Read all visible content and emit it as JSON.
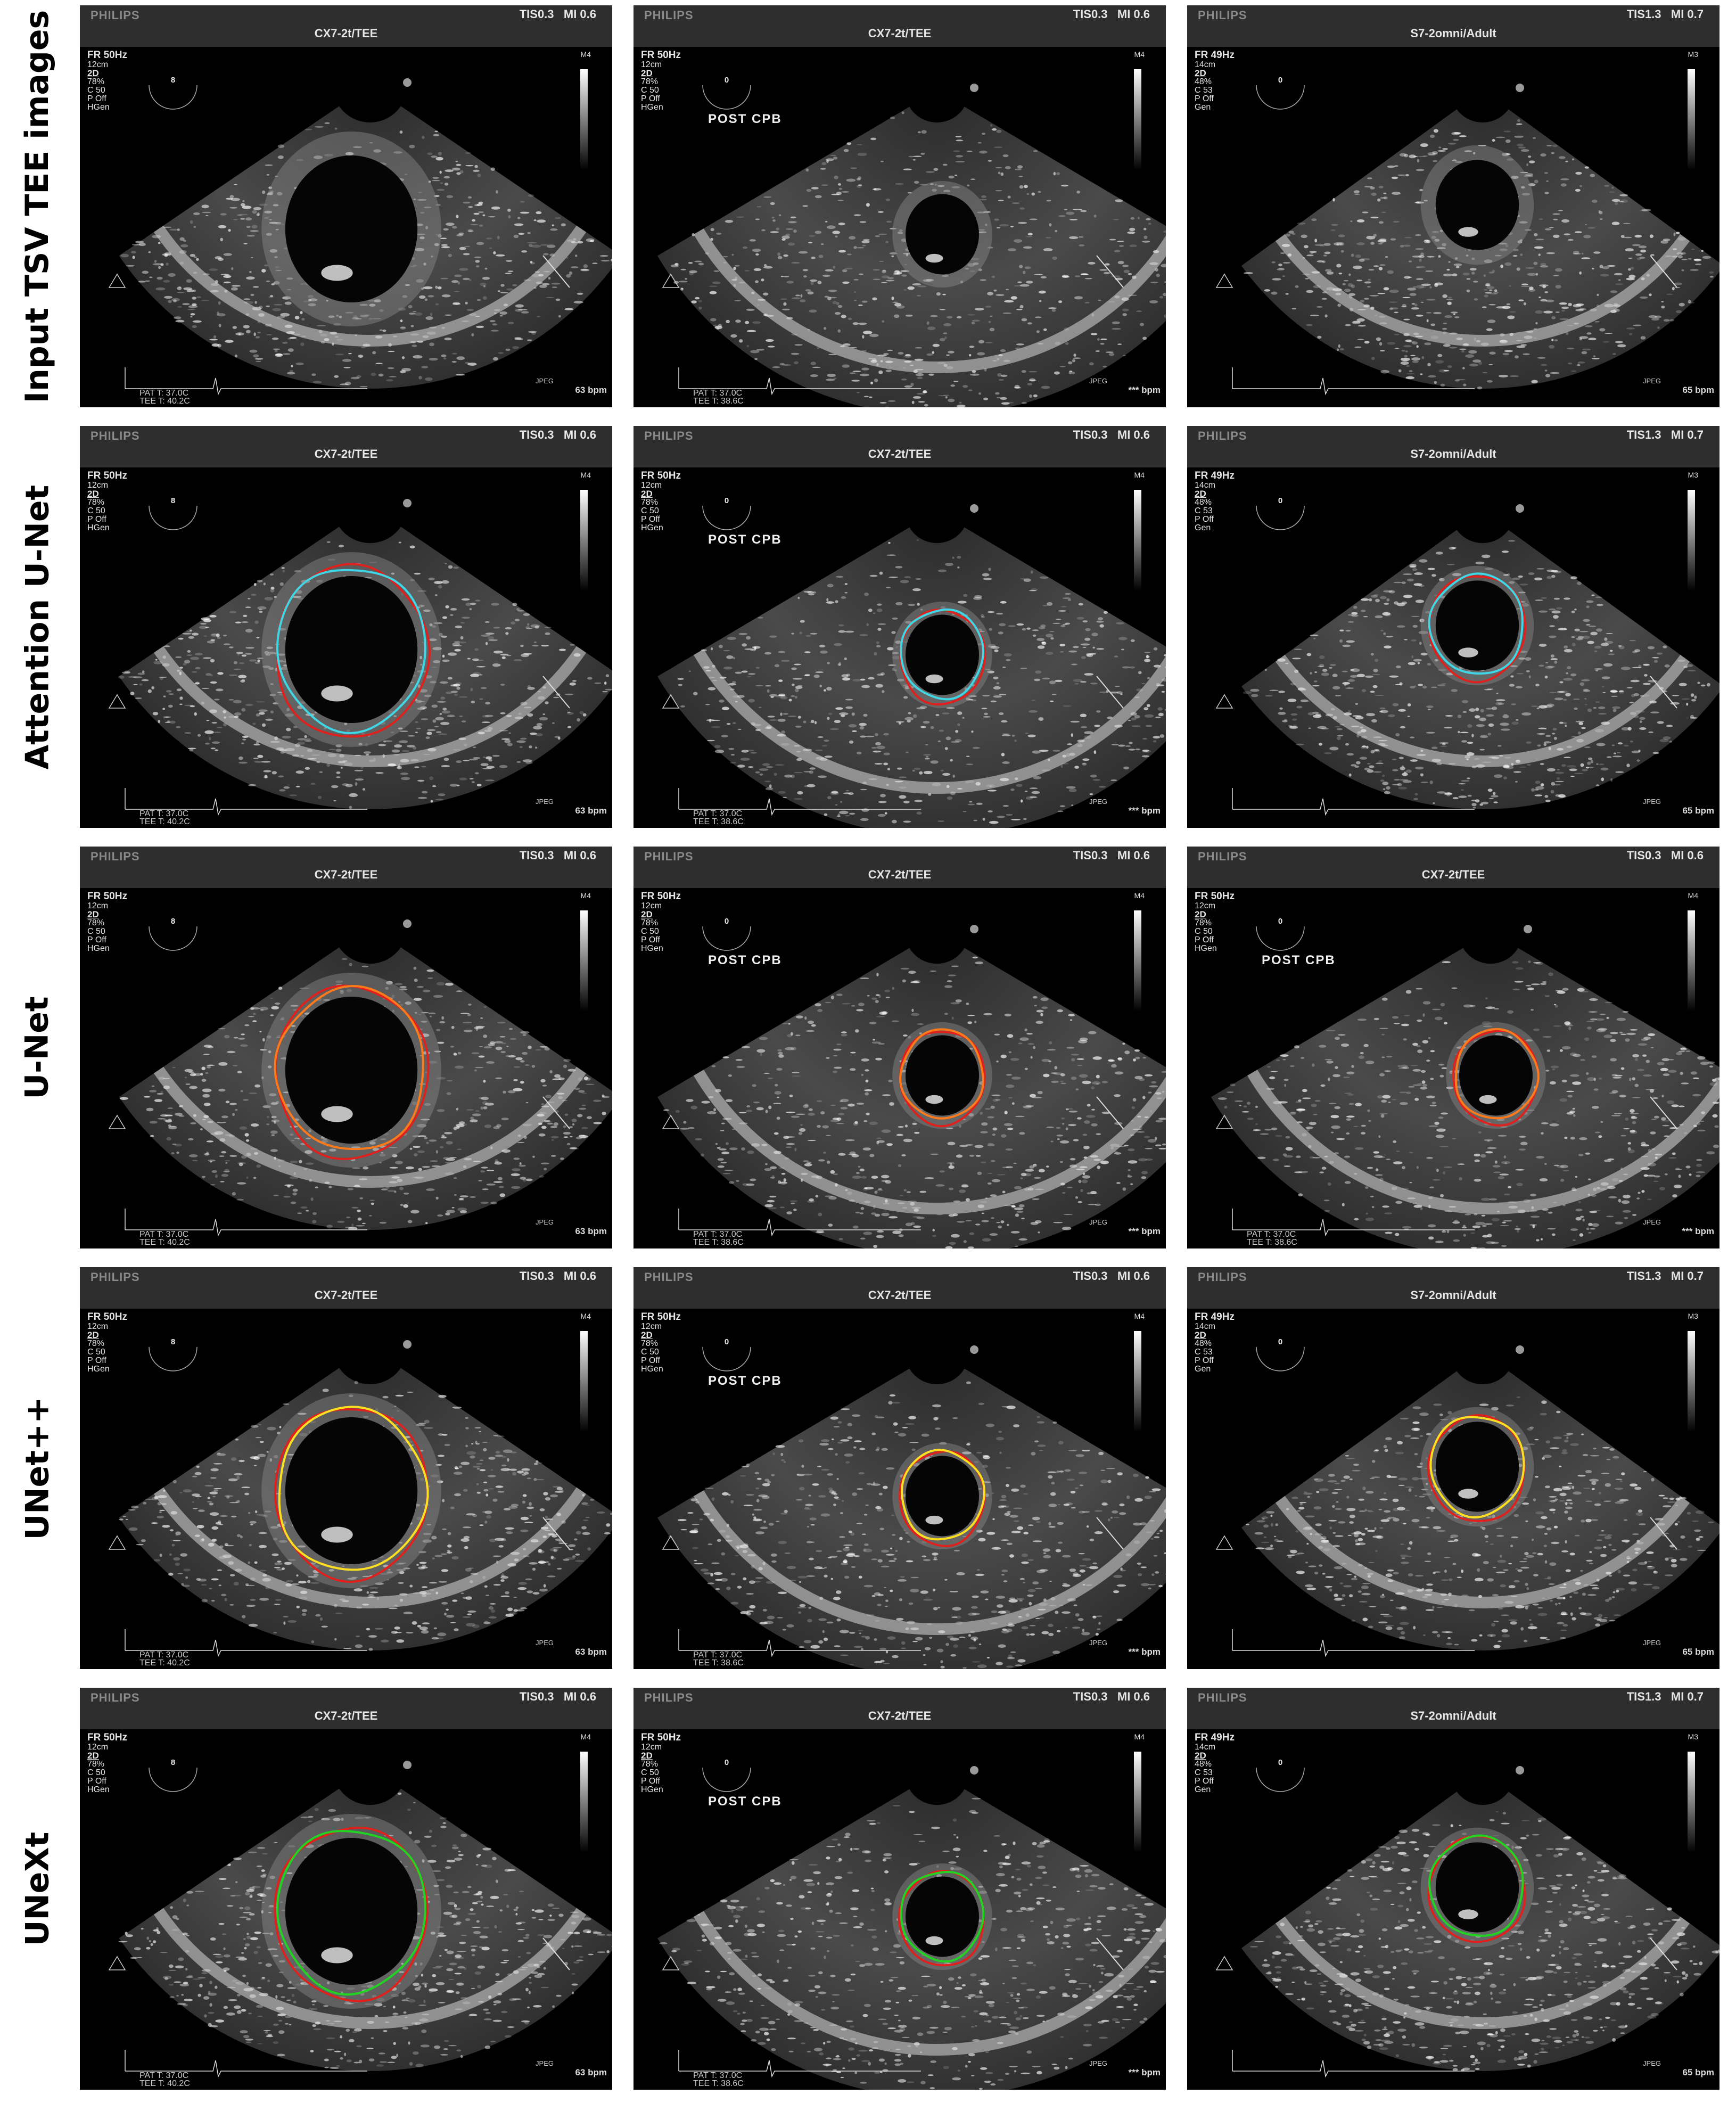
{
  "row_labels": [
    "Input TSV TEE images",
    "Attention U-Net",
    "U-Net",
    "UNet++",
    "UNeXt"
  ],
  "frames": {
    "A": {
      "brand": "PHILIPS",
      "tis": "TIS0.3   MI 0.6",
      "probe": "CX7-2t/TEE",
      "mlabel": "M4",
      "fr": "FR 50Hz",
      "depth": "12cm",
      "mode": "2D",
      "gain": "78%",
      "c": "C 50",
      "p": "P Off",
      "gen": "HGen",
      "post": "",
      "jpeg": "JPEG",
      "bpm": "63 bpm",
      "pat": "PAT T: 37.0C",
      "tee": "TEE T: 40.2C",
      "arc_value": "8"
    },
    "B": {
      "brand": "PHILIPS",
      "tis": "TIS0.3   MI 0.6",
      "probe": "CX7-2t/TEE",
      "mlabel": "M4",
      "fr": "FR 50Hz",
      "depth": "12cm",
      "mode": "2D",
      "gain": "78%",
      "c": "C 50",
      "p": "P Off",
      "gen": "HGen",
      "post": "POST  CPB",
      "jpeg": "JPEG",
      "bpm": "*** bpm",
      "pat": "PAT T: 37.0C",
      "tee": "TEE T: 38.6C",
      "arc_value": "0"
    },
    "C": {
      "brand": "PHILIPS",
      "tis": "TIS1.3   MI 0.7",
      "probe": "S7-2omni/Adult",
      "mlabel": "M3",
      "fr": "FR 49Hz",
      "depth": "14cm",
      "mode": "2D",
      "gain": "48%",
      "c": "C 53",
      "p": "P Off",
      "gen": "Gen",
      "post": "",
      "jpeg": "JPEG",
      "bpm": "65 bpm",
      "pat": "",
      "tee": "",
      "arc_value": "0"
    }
  },
  "overlay_colors": {
    "ground_truth": "#e0201c",
    "attention_unet": "#3fd6e6",
    "unet": "#ff7a1a",
    "unetpp": "#ffe020",
    "unext": "#22d422"
  }
}
